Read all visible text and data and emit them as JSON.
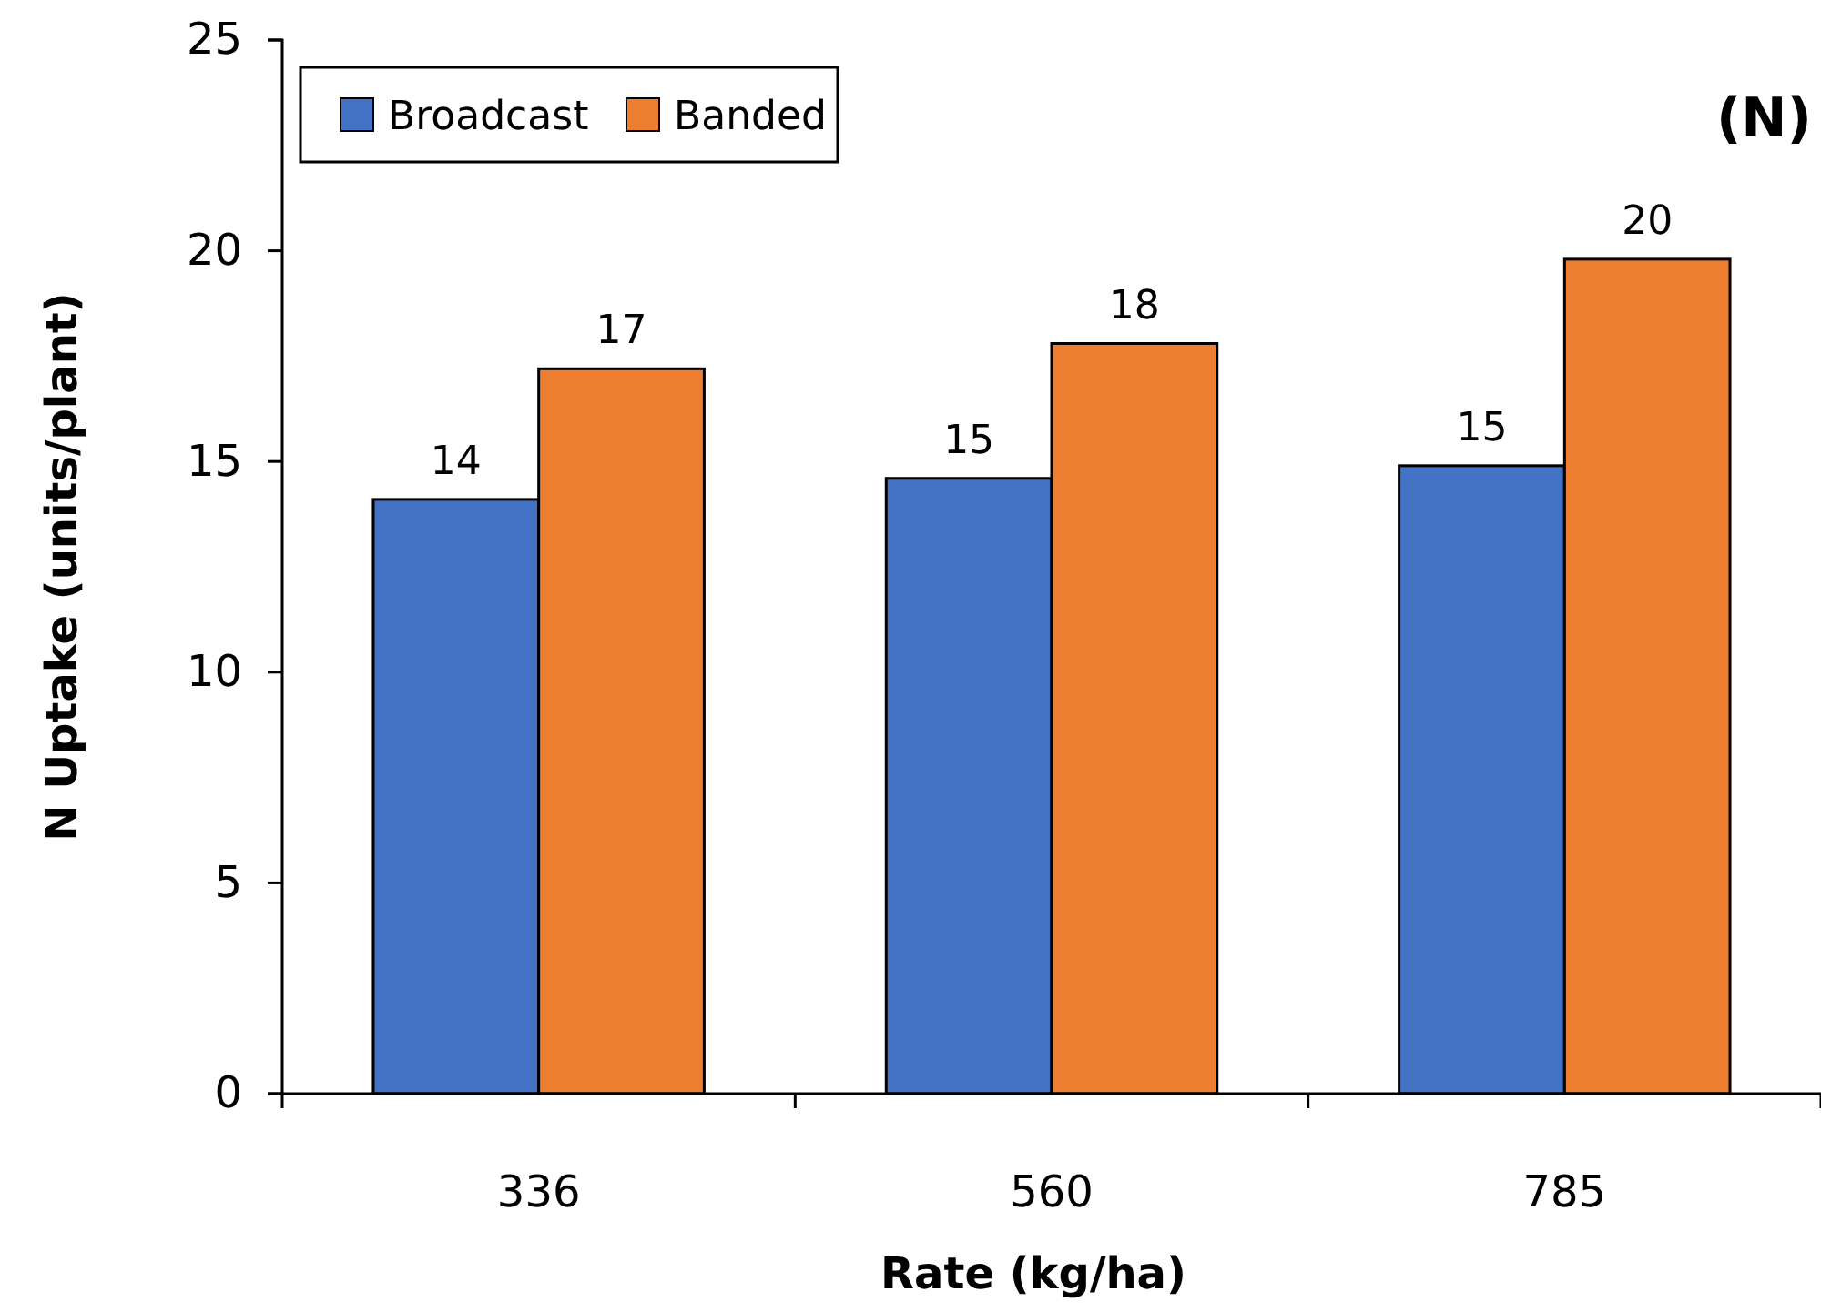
{
  "chart_data": {
    "type": "bar",
    "xlabel": "Rate (kg/ha)",
    "ylabel": "N Uptake (units/plant)",
    "annotations": [
      "(N)"
    ],
    "categories": [
      "336",
      "560",
      "785"
    ],
    "series": [
      {
        "name": "Broadcast",
        "color": "#4472c4",
        "values": [
          14.1,
          14.6,
          14.9
        ],
        "value_labels": [
          "14",
          "15",
          "15"
        ]
      },
      {
        "name": "Banded",
        "color": "#ed7d31",
        "values": [
          17.2,
          17.8,
          19.8
        ],
        "value_labels": [
          "17",
          "18",
          "20"
        ]
      }
    ],
    "ylim": [
      0,
      25
    ],
    "yticks": [
      0,
      5,
      10,
      15,
      20,
      25
    ],
    "legend": "top left"
  }
}
